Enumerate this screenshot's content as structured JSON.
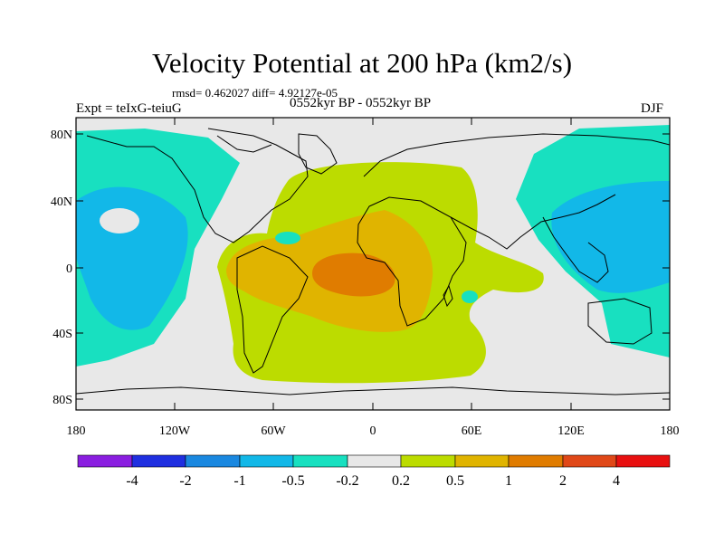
{
  "title": "Velocity Potential at 200 hPa (km2/s)",
  "stats": "rmsd= 0.462027 diff= 4.92127e-05",
  "left_label": "Expt = teIxG-teiuG",
  "center_label": "0552kyr BP - 0552kyr BP",
  "right_label": "DJF",
  "map": {
    "lat_ticks": [
      "80N",
      "40N",
      "0",
      "40S",
      "80S"
    ],
    "lon_ticks": [
      "180",
      "120W",
      "60W",
      "0",
      "60E",
      "120E",
      "180"
    ]
  },
  "colorbar": {
    "labels": [
      "-4",
      "-2",
      "-1",
      "-0.5",
      "-0.2",
      "0.2",
      "0.5",
      "1",
      "2",
      "4"
    ],
    "colors": [
      "#8a1ee0",
      "#1f2fe0",
      "#1a88e0",
      "#12b8e8",
      "#18e0c0",
      "#e8e8e8",
      "#bcdc00",
      "#e0b400",
      "#e07c00",
      "#e04818",
      "#e81010"
    ]
  },
  "palette": {
    "neg_weak": "#18e0c0",
    "neg_mid": "#12b8e8",
    "neutral": "#e8e8e8",
    "pos_weak": "#bcdc00",
    "pos_mid": "#e0b400",
    "pos_strong": "#e07c00"
  }
}
